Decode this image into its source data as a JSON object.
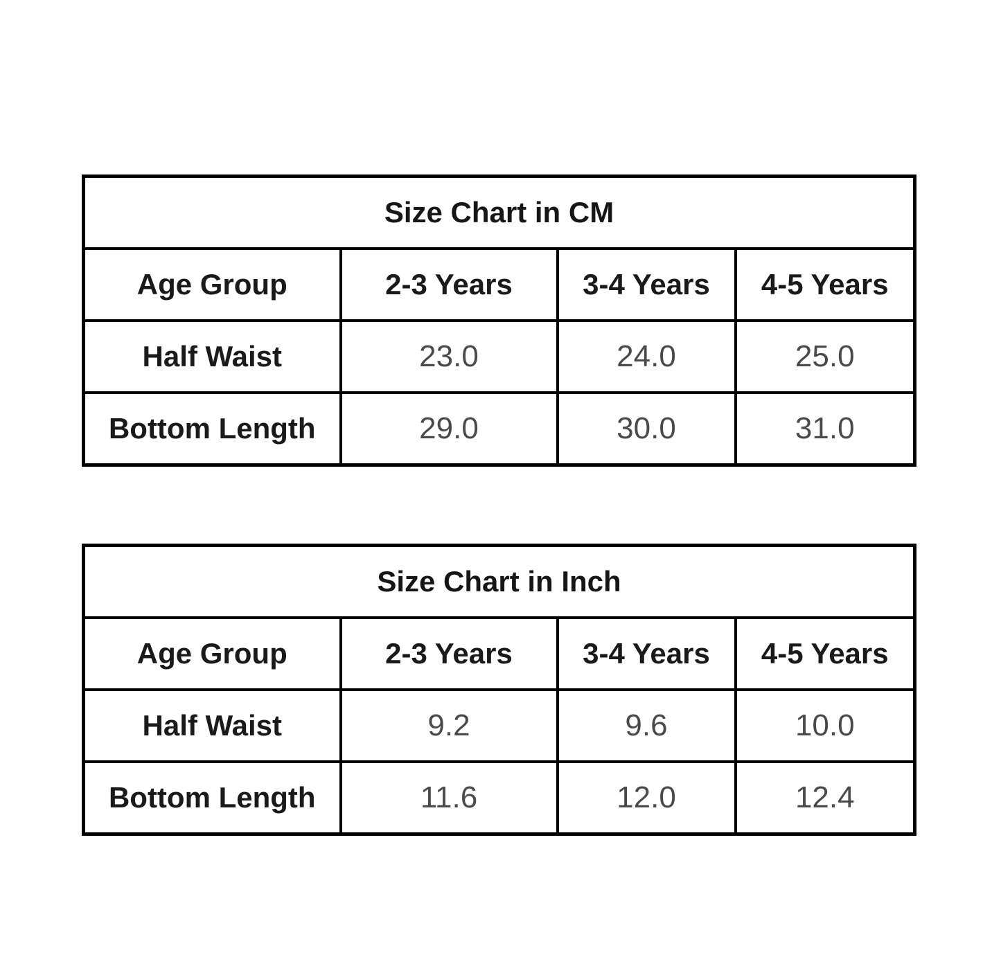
{
  "colors": {
    "background": "#ffffff",
    "border": "#000000",
    "label_text": "#1a1a1a",
    "value_text": "#4a4a4a"
  },
  "chart_data": [
    {
      "type": "table",
      "title": "Size Chart in CM",
      "columns": [
        "Age Group",
        "2-3 Years",
        "3-4 Years",
        "4-5 Years"
      ],
      "rows": [
        {
          "label": "Half Waist",
          "values": [
            "23.0",
            "24.0",
            "25.0"
          ]
        },
        {
          "label": "Bottom Length",
          "values": [
            "29.0",
            "30.0",
            "31.0"
          ]
        }
      ]
    },
    {
      "type": "table",
      "title": "Size Chart in Inch",
      "columns": [
        "Age Group",
        "2-3 Years",
        "3-4 Years",
        "4-5 Years"
      ],
      "rows": [
        {
          "label": "Half Waist",
          "values": [
            "9.2",
            "9.6",
            "10.0"
          ]
        },
        {
          "label": "Bottom Length",
          "values": [
            "11.6",
            "12.0",
            "12.4"
          ]
        }
      ]
    }
  ]
}
